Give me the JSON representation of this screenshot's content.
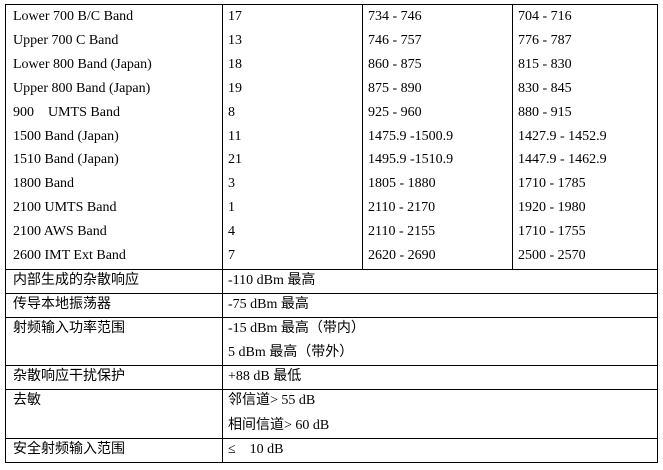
{
  "bands": {
    "rows": [
      [
        "Lower 700 B/C Band",
        "17",
        "734 - 746",
        "704 - 716"
      ],
      [
        "Upper 700 C Band",
        "13",
        "746 - 757",
        "776 - 787"
      ],
      [
        "Lower 800 Band (Japan)",
        "18",
        "860 - 875",
        "815 - 830"
      ],
      [
        "Upper 800 Band (Japan)",
        "19",
        "875 - 890",
        "830 - 845"
      ],
      [
        "900　UMTS Band",
        "8",
        "925 - 960",
        "880 - 915"
      ],
      [
        "1500 Band (Japan)",
        "11",
        "1475.9 -1500.9",
        "1427.9 - 1452.9"
      ],
      [
        "1510 Band (Japan)",
        "21",
        "1495.9 -1510.9",
        "1447.9 - 1462.9"
      ],
      [
        "1800 Band",
        "3",
        "1805 - 1880",
        "1710 - 1785"
      ],
      [
        "2100 UMTS Band",
        "1",
        "2110 - 2170",
        "1920 - 1980"
      ],
      [
        "2100 AWS Band",
        "4",
        "2110 - 2155",
        "1710 - 1755"
      ],
      [
        "2600 IMT Ext Band",
        "7",
        "2620 - 2690",
        "2500 - 2570"
      ]
    ]
  },
  "specs": [
    {
      "label": "内部生成的杂散响应",
      "values": [
        "-110 dBm 最高"
      ]
    },
    {
      "label": "传导本地振荡器",
      "values": [
        "-75 dBm 最高"
      ]
    },
    {
      "label": "射频输入功率范围",
      "values": [
        "-15 dBm 最高（带内）",
        "5 dBm 最高（带外）"
      ]
    },
    {
      "label": "杂散响应干扰保护",
      "values": [
        "+88 dB 最低"
      ]
    },
    {
      "label": "去敏",
      "values": [
        "邻信道> 55 dB",
        "相间信道> 60 dB"
      ]
    },
    {
      "label": "安全射频输入范围",
      "values": [
        "≤　10 dB"
      ]
    }
  ]
}
